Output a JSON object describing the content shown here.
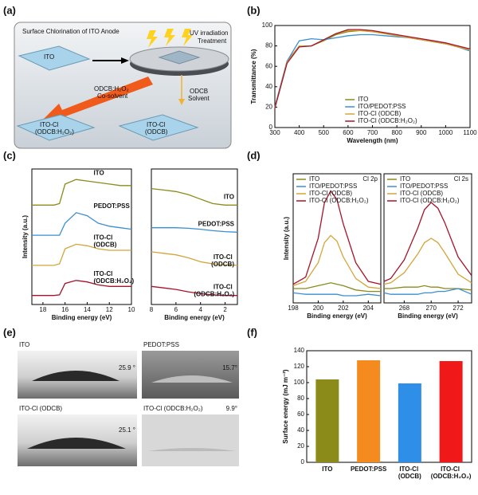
{
  "panel_labels": [
    "(a)",
    "(b)",
    "(c)",
    "(d)",
    "(e)",
    "(f)"
  ],
  "schematic": {
    "title": "Surface Chlorination of ITO Anode",
    "uv_label": [
      "UV irradiation",
      "Treatment"
    ],
    "ito": "ITO",
    "cosolvent": [
      "ODCB:H₂O₂",
      "Co-solvent"
    ],
    "solvent": [
      "ODCB",
      "Solvent"
    ],
    "slab_cosolvent": [
      "ITO-Cl",
      "(ODCB:H₂O₂)"
    ],
    "slab_solvent": [
      "ITO-Cl",
      "(ODCB)"
    ]
  },
  "contact_angle": {
    "images": [
      {
        "label": "ITO",
        "angle": "25.9 °"
      },
      {
        "label": "PEDOT:PSS",
        "angle": "15.7°"
      },
      {
        "label": "ITO-Cl (ODCB)",
        "angle": "25.1 °"
      },
      {
        "label": "ITO-Cl (ODCB:H₂O₂)",
        "angle": "9.9°"
      }
    ]
  },
  "chart_data": [
    {
      "type": "line",
      "xlabel": "Wavelength (nm)",
      "ylabel": "Transmittance (%)",
      "x": [
        300,
        350,
        400,
        450,
        500,
        550,
        600,
        650,
        700,
        750,
        800,
        850,
        900,
        950,
        1000,
        1050,
        1100
      ],
      "xlim": [
        300,
        1100
      ],
      "xticks": [
        300,
        400,
        500,
        600,
        700,
        800,
        900,
        1000,
        1100
      ],
      "ylim": [
        0,
        100
      ],
      "yticks": [
        0,
        20,
        40,
        60,
        80,
        100
      ],
      "legend": "lower right",
      "series": [
        {
          "name": "ITO",
          "color": "#8b8b1a",
          "values": [
            20,
            65,
            80,
            80,
            85,
            91,
            94,
            95,
            94,
            92,
            90,
            88,
            86,
            84,
            82,
            79,
            76
          ]
        },
        {
          "name": "ITO/PEDOT:PSS",
          "color": "#3a8fd0",
          "values": [
            20,
            65,
            85,
            87,
            86,
            88,
            90,
            91,
            91,
            90,
            89,
            88,
            86,
            84,
            82,
            79,
            75
          ]
        },
        {
          "name": "ITO-Cl (ODCB)",
          "color": "#d3a53a",
          "values": [
            19,
            64,
            80,
            80,
            86,
            92,
            95,
            95,
            94,
            92,
            90,
            88,
            86,
            84,
            82,
            79,
            76
          ]
        },
        {
          "name": "ITO-Cl (ODCB:H₂O₂)",
          "color": "#a8122a",
          "values": [
            19,
            63,
            79,
            80,
            86,
            92,
            96,
            96,
            95,
            93,
            91,
            89,
            87,
            85,
            83,
            80,
            77
          ]
        }
      ]
    },
    {
      "type": "line",
      "xlabel": "Binding energy (eV)",
      "ylabel": "Intensity (a.u.)",
      "x": [
        19,
        18,
        17,
        16.5,
        16,
        15,
        14,
        13,
        12,
        11,
        10
      ],
      "xlim": [
        19,
        10
      ],
      "xticks": [
        18,
        16,
        14,
        12,
        10
      ],
      "ylim": [
        -0.3,
        4.2
      ],
      "legend": "curve labels",
      "series": [
        {
          "name": "ITO",
          "color": "#8b8b1a",
          "values": [
            3.0,
            3.0,
            3.0,
            3.05,
            3.7,
            3.85,
            3.8,
            3.75,
            3.7,
            3.65,
            3.65
          ]
        },
        {
          "name": "PEDOT:PSS",
          "color": "#3a8fd0",
          "values": [
            2.0,
            2.0,
            2.0,
            2.0,
            2.4,
            2.75,
            2.65,
            2.4,
            2.3,
            2.25,
            2.2
          ]
        },
        {
          "name": "ITO-Cl (ODCB)",
          "color": "#d3a53a",
          "values": [
            1.0,
            1.0,
            1.0,
            1.05,
            1.55,
            1.7,
            1.65,
            1.55,
            1.5,
            1.5,
            1.5
          ]
        },
        {
          "name": "ITO-Cl (ODCB:H₂O₂)",
          "color": "#a8122a",
          "values": [
            0,
            0,
            0,
            0.02,
            0.4,
            0.5,
            0.45,
            0.35,
            0.3,
            0.3,
            0.3
          ]
        }
      ]
    },
    {
      "type": "line",
      "xlabel": "Binding energy (eV)",
      "x": [
        8,
        7,
        6,
        5,
        4,
        3,
        2,
        1
      ],
      "xlim": [
        8,
        1
      ],
      "xticks": [
        8,
        6,
        4,
        2
      ],
      "ylim": [
        -0.3,
        4.2
      ],
      "legend": "curve labels",
      "series": [
        {
          "name": "ITO",
          "color": "#8b8b1a",
          "values": [
            3.55,
            3.5,
            3.45,
            3.35,
            3.2,
            3.05,
            3.0,
            3.0
          ]
        },
        {
          "name": "PEDOT:PSS",
          "color": "#3a8fd0",
          "values": [
            2.25,
            2.25,
            2.25,
            2.23,
            2.2,
            2.15,
            2.12,
            2.1
          ]
        },
        {
          "name": "ITO-Cl (ODCB)",
          "color": "#d3a53a",
          "values": [
            1.45,
            1.4,
            1.35,
            1.25,
            1.12,
            1.05,
            1.02,
            1.0
          ]
        },
        {
          "name": "ITO-Cl (ODCB:H₂O₂)",
          "color": "#a8122a",
          "values": [
            0.3,
            0.25,
            0.2,
            0.12,
            0.06,
            0.02,
            0,
            0
          ]
        }
      ]
    },
    {
      "type": "line",
      "xlabel": "Binding energy (eV)",
      "ylabel": "Intensity (a.u.)",
      "legend_title": "Cl 2p",
      "x": [
        198,
        199,
        200,
        200.5,
        201,
        201.5,
        202,
        203,
        204,
        205
      ],
      "xlim": [
        198,
        205
      ],
      "xticks": [
        198,
        200,
        202,
        204
      ],
      "ylim": [
        0,
        9
      ],
      "legend": "upper left",
      "series": [
        {
          "name": "ITO",
          "color": "#8b8b1a",
          "values": [
            1,
            1,
            1.2,
            1.3,
            1.4,
            1.3,
            1.2,
            0.9,
            0.8,
            0.8
          ]
        },
        {
          "name": "ITO/PEDOT:PSS",
          "color": "#3a8fd0",
          "values": [
            0.7,
            0.6,
            0.6,
            0.6,
            0.6,
            0.6,
            0.5,
            0.5,
            0.6,
            0.5
          ]
        },
        {
          "name": "ITO-Cl (ODCB)",
          "color": "#d3a53a",
          "values": [
            1.2,
            1.5,
            2.8,
            4.2,
            4.7,
            4.3,
            3.2,
            1.7,
            1.1,
            1.0
          ]
        },
        {
          "name": "ITO-Cl (ODCB:H₂O₂)",
          "color": "#a8122a",
          "values": [
            1.3,
            1.8,
            4.5,
            7,
            7.8,
            7.2,
            5.5,
            2.8,
            1.5,
            1.3
          ]
        }
      ]
    },
    {
      "type": "line",
      "xlabel": "Binding energy (eV)",
      "legend_title": "Cl 2s",
      "x": [
        266.5,
        267,
        268,
        269,
        269.5,
        270,
        270.5,
        271,
        272,
        273
      ],
      "xlim": [
        266.5,
        273
      ],
      "xticks": [
        268,
        270,
        272
      ],
      "ylim": [
        0,
        9
      ],
      "legend": "upper left",
      "series": [
        {
          "name": "ITO",
          "color": "#8b8b1a",
          "values": [
            1,
            1,
            1.1,
            1.1,
            1.2,
            1.1,
            1.1,
            1,
            1,
            0.9
          ]
        },
        {
          "name": "ITO/PEDOT:PSS",
          "color": "#3a8fd0",
          "values": [
            0.7,
            0.6,
            0.6,
            0.6,
            0.7,
            0.7,
            0.8,
            0.8,
            1.0,
            0.6
          ]
        },
        {
          "name": "ITO-Cl (ODCB)",
          "color": "#d3a53a",
          "values": [
            1.3,
            1.4,
            2.1,
            3.4,
            4.2,
            4.5,
            4.2,
            3.5,
            2,
            1.4
          ]
        },
        {
          "name": "ITO-Cl (ODCB:H₂O₂)",
          "color": "#a8122a",
          "values": [
            1.5,
            1.7,
            3,
            5.2,
            6.5,
            7,
            6.6,
            5.6,
            3.2,
            1.9
          ]
        }
      ]
    },
    {
      "type": "bar",
      "ylabel": "Surface energy (mJ m⁻²)",
      "categories": [
        "ITO",
        "PEDOT:PSS",
        "ITO-Cl (ODCB)",
        "ITO-Cl (ODCB:H₂O₂)"
      ],
      "values": [
        104,
        128,
        99,
        127
      ],
      "colors": [
        "#8b8b1a",
        "#f58a1f",
        "#2f8ee8",
        "#f01818"
      ],
      "ylim": [
        0,
        140
      ],
      "yticks": [
        0,
        20,
        40,
        60,
        80,
        100,
        120,
        140
      ]
    }
  ]
}
